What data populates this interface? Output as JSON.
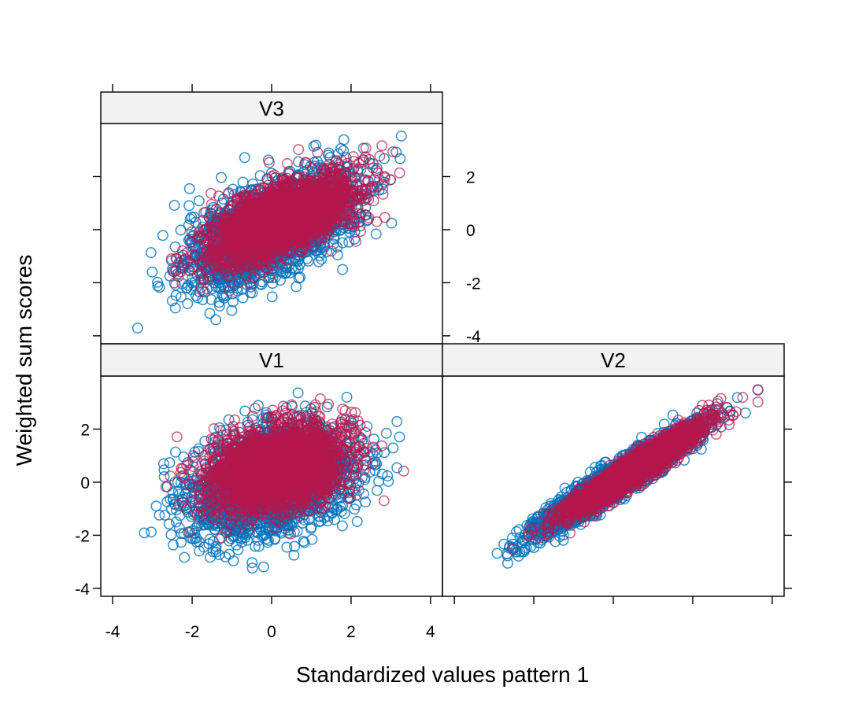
{
  "chart_data": {
    "type": "scatter",
    "layout": "lattice 2 columns x 2 rows, panels: bottom-left V1, bottom-right V2, top-left V3",
    "xlabel": "Standardized values pattern 1",
    "ylabel": "Weighted sum scores",
    "xlim": [
      -4.3,
      4.3
    ],
    "ylim": [
      -4.3,
      4.0
    ],
    "x_ticks": [
      -4,
      -2,
      0,
      2,
      4
    ],
    "y_ticks": [
      -4,
      -2,
      0,
      2
    ],
    "x_tick_labels": [
      "-4",
      "-2",
      "0",
      "2",
      "4"
    ],
    "y_tick_labels": [
      "-4",
      "-2",
      "0",
      "2"
    ],
    "marker": "open circle",
    "colors": {
      "group_blue": "#0072bd",
      "group_red": "#b5174b"
    },
    "panels": [
      {
        "name": "V1",
        "groups": [
          {
            "color": "#0072bd",
            "mean_x": 0.0,
            "mean_y": 0.0,
            "sd_x": 1.0,
            "sd_y": 1.0,
            "correlation": 0.3,
            "n": 2500
          },
          {
            "color": "#b5174b",
            "mean_x": 0.15,
            "mean_y": 0.55,
            "sd_x": 0.85,
            "sd_y": 0.8,
            "correlation": 0.3,
            "n": 2500
          }
        ],
        "approx_x_range": [
          -3.7,
          3.4
        ],
        "approx_y_range": [
          -3.8,
          3.5
        ]
      },
      {
        "name": "V2",
        "groups": [
          {
            "color": "#0072bd",
            "mean_x": 0.0,
            "mean_y": 0.0,
            "sd_x": 1.0,
            "sd_y": 1.0,
            "correlation": 0.95,
            "n": 2500
          },
          {
            "color": "#b5174b",
            "mean_x": 0.45,
            "mean_y": 0.4,
            "sd_x": 0.85,
            "sd_y": 0.85,
            "correlation": 0.95,
            "n": 2500
          }
        ],
        "approx_x_range": [
          -3.6,
          3.9
        ],
        "approx_y_range": [
          -3.8,
          3.5
        ]
      },
      {
        "name": "V3",
        "groups": [
          {
            "color": "#0072bd",
            "mean_x": 0.0,
            "mean_y": 0.0,
            "sd_x": 1.0,
            "sd_y": 1.0,
            "correlation": 0.6,
            "n": 2500
          },
          {
            "color": "#b5174b",
            "mean_x": 0.2,
            "mean_y": 0.35,
            "sd_x": 0.9,
            "sd_y": 0.8,
            "correlation": 0.6,
            "n": 2500
          }
        ],
        "approx_x_range": [
          -3.8,
          3.8
        ],
        "approx_y_range": [
          -3.8,
          3.6
        ]
      }
    ]
  }
}
